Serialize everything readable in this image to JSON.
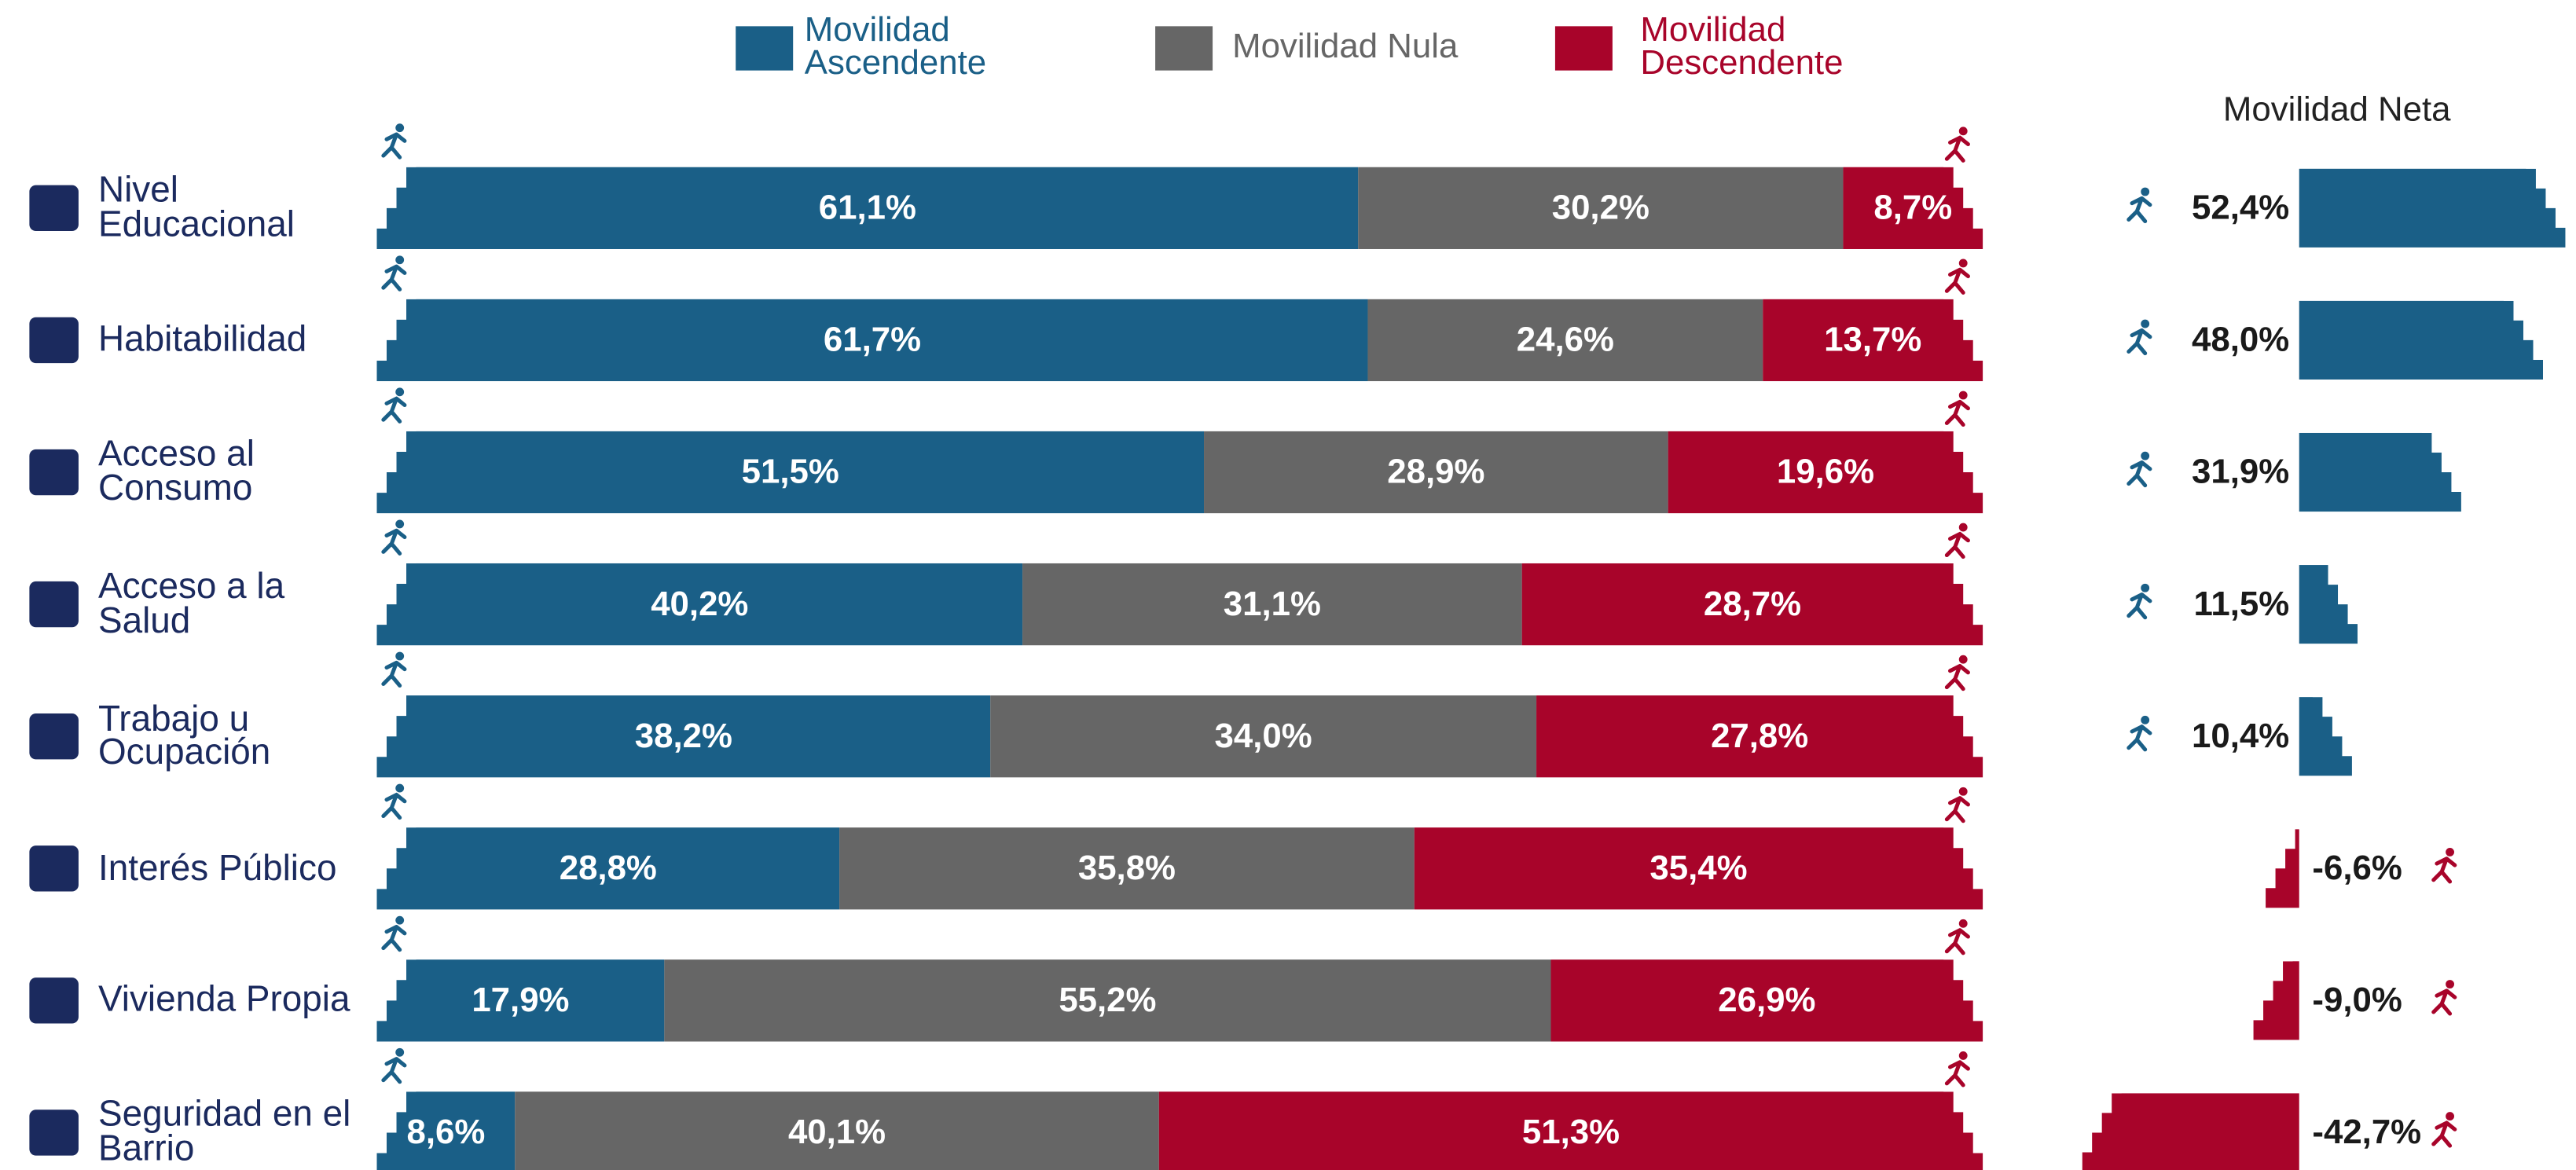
{
  "chart_data": {
    "type": "stacked_bar",
    "categories": [
      "Nivel Educacional",
      "Habitabilidad",
      "Acceso al Consumo",
      "Acceso a la Salud",
      "Trabajo u Ocupación",
      "Interés Público",
      "Vivienda Propia",
      "Seguridad en el Barrio"
    ],
    "series": [
      {
        "name": "Movilidad Ascendente",
        "color": "#1a5f87",
        "values": [
          61.1,
          61.7,
          51.5,
          40.2,
          38.2,
          28.8,
          17.9,
          8.6
        ],
        "value_labels": [
          "61,1%",
          "61,7%",
          "51,5%",
          "40,2%",
          "38,2%",
          "28,8%",
          "17,9%",
          "8,6%"
        ]
      },
      {
        "name": "Movilidad Nula",
        "color": "#666666",
        "values": [
          30.2,
          24.6,
          28.9,
          31.1,
          34.0,
          35.8,
          55.2,
          40.1
        ],
        "value_labels": [
          "30,2%",
          "24,6%",
          "28,9%",
          "31,1%",
          "34,0%",
          "35,8%",
          "55,2%",
          "40,1%"
        ]
      },
      {
        "name": "Movilidad Descendente",
        "color": "#a8042a",
        "values": [
          8.7,
          13.7,
          19.6,
          28.7,
          27.8,
          35.4,
          26.9,
          51.3
        ],
        "value_labels": [
          "8,7%",
          "13,7%",
          "19,6%",
          "28,7%",
          "27,8%",
          "35,4%",
          "26,9%",
          "51,3%"
        ]
      }
    ],
    "net": {
      "title": "Movilidad Neta",
      "values": [
        52.4,
        48.0,
        31.9,
        11.5,
        10.4,
        -6.6,
        -9.0,
        -42.7
      ],
      "value_labels": [
        "52,4%",
        "48,0%",
        "31,9%",
        "11,5%",
        "10,4%",
        "-6,6%",
        "-9,0%",
        "-42,7%"
      ]
    }
  }
}
